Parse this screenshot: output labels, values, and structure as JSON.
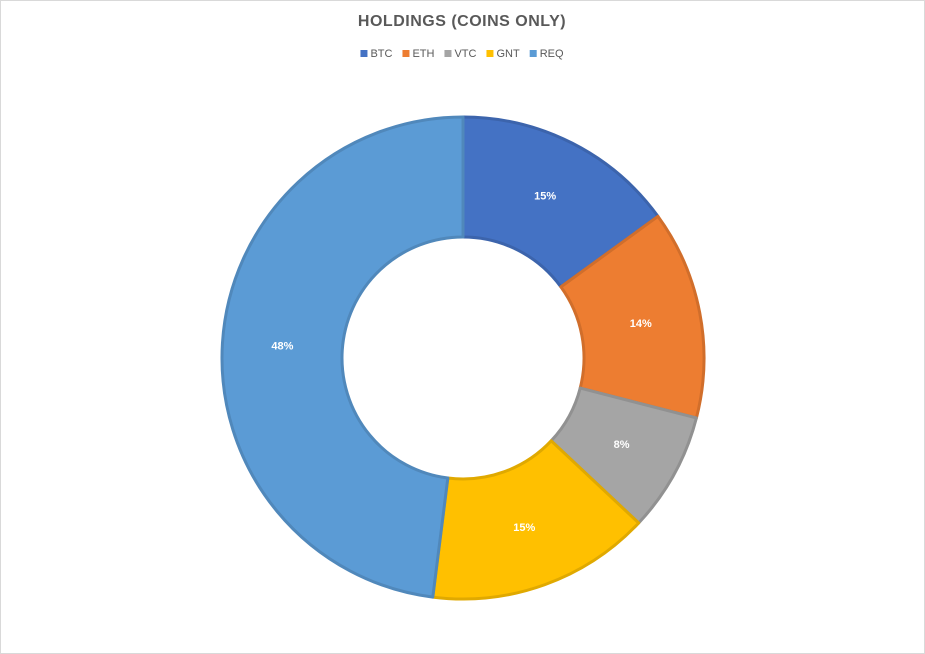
{
  "chart_data": {
    "type": "donut",
    "title": "HOLDINGS (COINS ONLY)",
    "categories": [
      "BTC",
      "ETH",
      "VTC",
      "GNT",
      "REQ"
    ],
    "values": [
      15,
      14,
      8,
      15,
      48
    ],
    "value_labels": [
      "15%",
      "14%",
      "8%",
      "15%",
      "48%"
    ],
    "colors": [
      "#4472c4",
      "#ed7d31",
      "#a5a5a5",
      "#ffc000",
      "#5b9bd5"
    ],
    "legend": "top"
  }
}
